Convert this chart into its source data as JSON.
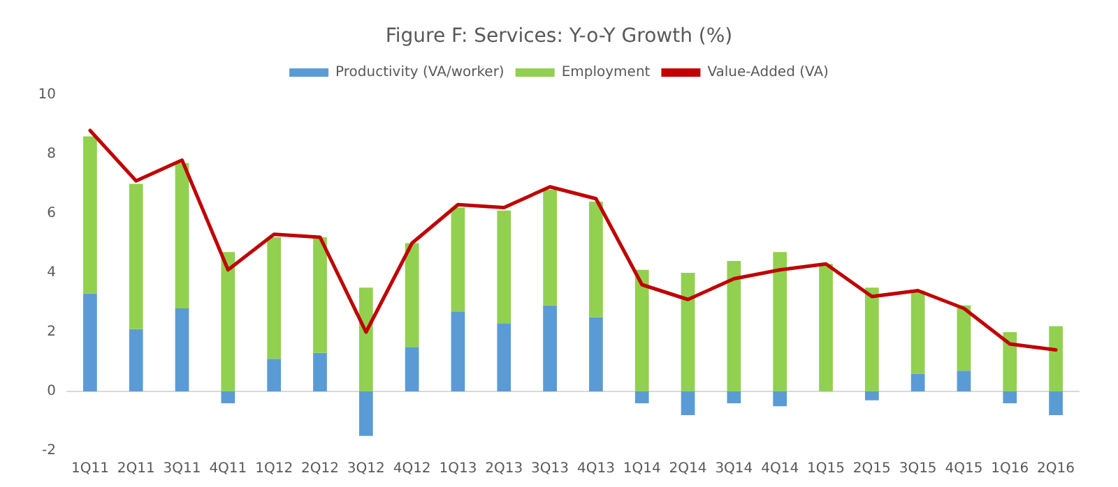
{
  "chart_data": {
    "type": "bar",
    "title": "Figure F: Services: Y-o-Y Growth (%)",
    "stacked": true,
    "legend": "top",
    "categories": [
      "1Q11",
      "2Q11",
      "3Q11",
      "4Q11",
      "1Q12",
      "2Q12",
      "3Q12",
      "4Q12",
      "1Q13",
      "2Q13",
      "3Q13",
      "4Q13",
      "1Q14",
      "2Q14",
      "3Q14",
      "4Q14",
      "1Q15",
      "2Q15",
      "3Q15",
      "4Q15",
      "1Q16",
      "2Q16"
    ],
    "series": [
      {
        "name": "Productivity (VA/worker)",
        "color": "#5b9bd5",
        "values": [
          3.3,
          2.1,
          2.8,
          -0.4,
          1.1,
          1.3,
          -1.5,
          1.5,
          2.7,
          2.3,
          2.9,
          2.5,
          -0.4,
          -0.8,
          -0.4,
          -0.5,
          0,
          -0.3,
          0.6,
          0.7,
          -0.4,
          -0.8
        ]
      },
      {
        "name": "Employment",
        "color": "#92d050",
        "values": [
          5.3,
          4.9,
          4.9,
          4.7,
          4.1,
          3.9,
          3.5,
          3.5,
          3.5,
          3.8,
          3.9,
          3.9,
          4.1,
          4.0,
          4.4,
          4.7,
          4.3,
          3.5,
          2.8,
          2.2,
          2.0,
          2.2
        ]
      },
      {
        "name": "Value-Added (VA)",
        "type": "line",
        "color": "#c00000",
        "marker": "none",
        "values": [
          8.8,
          7.1,
          7.8,
          4.1,
          5.3,
          5.2,
          2.0,
          5.0,
          6.3,
          6.2,
          6.9,
          6.5,
          3.6,
          3.1,
          3.8,
          4.1,
          4.3,
          3.2,
          3.4,
          2.8,
          1.6,
          1.4
        ]
      }
    ],
    "ylim": [
      -2,
      10
    ],
    "yticks": [
      -2,
      0,
      2,
      4,
      6,
      8,
      10
    ]
  }
}
